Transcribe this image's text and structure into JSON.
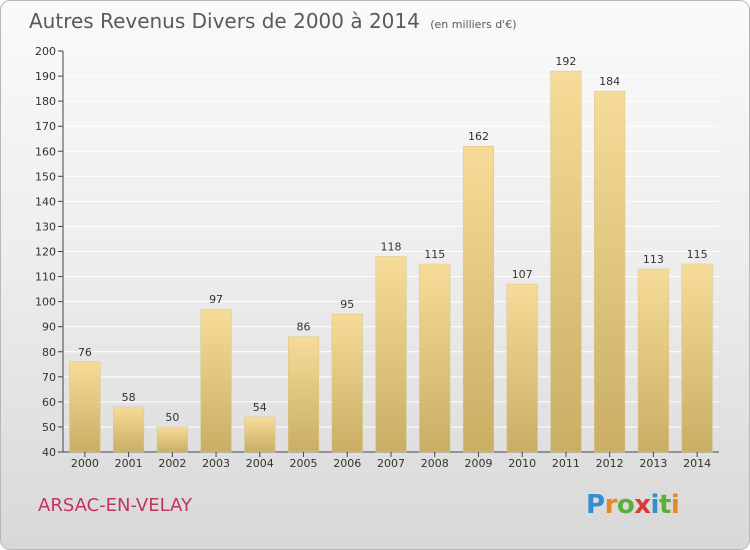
{
  "header": {
    "title": "Autres Revenus Divers de 2000 à 2014",
    "unit": "(en milliers d'€)"
  },
  "commune": "ARSAC-EN-VELAY",
  "logo": {
    "text": "Proxiti"
  },
  "colors": {
    "bar_light": "#f6dc98",
    "bar_dark": "#c9ae64",
    "axis": "#444444",
    "grid": "#ffffff",
    "commune": "#c0355c"
  },
  "chart_data": {
    "type": "bar",
    "title": "Autres Revenus Divers de 2000 à 2014",
    "subtitle": "(en milliers d'€)",
    "xlabel": "",
    "ylabel": "",
    "categories": [
      "2000",
      "2001",
      "2002",
      "2003",
      "2004",
      "2005",
      "2006",
      "2007",
      "2008",
      "2009",
      "2010",
      "2011",
      "2012",
      "2013",
      "2014"
    ],
    "values": [
      76,
      58,
      50,
      97,
      54,
      86,
      95,
      118,
      115,
      162,
      107,
      192,
      184,
      113,
      115
    ],
    "ylim": [
      40,
      200
    ],
    "yticks": [
      40,
      50,
      60,
      70,
      80,
      90,
      100,
      110,
      120,
      130,
      140,
      150,
      160,
      170,
      180,
      190,
      200
    ],
    "grid": true,
    "data_labels": true
  }
}
